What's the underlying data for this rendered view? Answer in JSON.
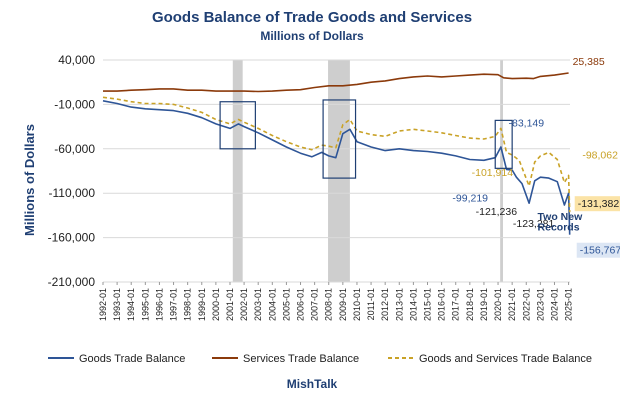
{
  "chart_data": {
    "type": "line",
    "title": "Goods Balance of Trade Goods and Services",
    "subtitle": "Millions of Dollars",
    "ylabel": "Millions of Dollars",
    "xlabel": "",
    "ylim": [
      -210000,
      40000
    ],
    "yticks": [
      40000,
      -10000,
      -60000,
      -110000,
      -160000,
      -210000
    ],
    "ytick_labels": [
      "40,000",
      "-10,000",
      "-60,000",
      "-110,000",
      "-160,000",
      "-210,000"
    ],
    "x_tick_labels": [
      "1992-01",
      "1993-01",
      "1994-01",
      "1995-01",
      "1996-01",
      "1997-01",
      "1998-01",
      "1999-01",
      "2000-01",
      "2001-01",
      "2002-01",
      "2003-01",
      "2004-01",
      "2005-01",
      "2006-01",
      "2007-01",
      "2008-01",
      "2009-01",
      "2010-01",
      "2011-01",
      "2012-01",
      "2013-01",
      "2014-01",
      "2015-01",
      "2016-01",
      "2017-01",
      "2018-01",
      "2019-01",
      "2020-01",
      "2021-01",
      "2022-01",
      "2023-01",
      "2024-01",
      "2025-01"
    ],
    "x_range": [
      1992.0,
      2025.1
    ],
    "grid": true,
    "legend_position": "bottom",
    "shaded_periods": [
      [
        2001.2,
        2001.9
      ],
      [
        2007.95,
        2009.5
      ],
      [
        2020.15,
        2020.35
      ]
    ],
    "highlight_boxes": [
      [
        2000.3,
        2002.8,
        -7000,
        -60000
      ],
      [
        2007.6,
        2009.9,
        -5000,
        -93000
      ],
      [
        2019.8,
        2021.0,
        -28000,
        -82000
      ]
    ],
    "series": [
      {
        "name": "Goods Trade Balance",
        "color": "#2e5597",
        "style": "solid",
        "points": [
          [
            1992.0,
            -6000
          ],
          [
            1993.0,
            -9000
          ],
          [
            1994.0,
            -13000
          ],
          [
            1995.0,
            -15000
          ],
          [
            1996.0,
            -16000
          ],
          [
            1997.0,
            -17000
          ],
          [
            1998.0,
            -20000
          ],
          [
            1999.0,
            -25000
          ],
          [
            2000.0,
            -32000
          ],
          [
            2001.0,
            -37000
          ],
          [
            2001.6,
            -32000
          ],
          [
            2002.0,
            -35000
          ],
          [
            2003.0,
            -42000
          ],
          [
            2004.0,
            -50000
          ],
          [
            2005.0,
            -58000
          ],
          [
            2006.0,
            -65000
          ],
          [
            2006.8,
            -69000
          ],
          [
            2007.5,
            -64000
          ],
          [
            2008.0,
            -68000
          ],
          [
            2008.5,
            -70000
          ],
          [
            2009.0,
            -43000
          ],
          [
            2009.5,
            -38000
          ],
          [
            2010.0,
            -52000
          ],
          [
            2011.0,
            -58000
          ],
          [
            2012.0,
            -62000
          ],
          [
            2013.0,
            -60000
          ],
          [
            2014.0,
            -62000
          ],
          [
            2015.0,
            -63000
          ],
          [
            2016.0,
            -65000
          ],
          [
            2017.0,
            -68000
          ],
          [
            2018.0,
            -72000
          ],
          [
            2019.0,
            -73000
          ],
          [
            2019.8,
            -70000
          ],
          [
            2020.2,
            -58000
          ],
          [
            2020.6,
            -83149
          ],
          [
            2021.0,
            -84000
          ],
          [
            2021.3,
            -92000
          ],
          [
            2021.7,
            -99219
          ],
          [
            2022.2,
            -121236
          ],
          [
            2022.6,
            -96000
          ],
          [
            2023.0,
            -92000
          ],
          [
            2023.6,
            -93000
          ],
          [
            2024.2,
            -97000
          ],
          [
            2024.7,
            -123281
          ],
          [
            2025.0,
            -110000
          ],
          [
            2025.08,
            -156767
          ]
        ]
      },
      {
        "name": "Services Trade Balance",
        "color": "#8b3a0b",
        "style": "solid",
        "points": [
          [
            1992.0,
            5000
          ],
          [
            1993.0,
            5000
          ],
          [
            1994.0,
            6000
          ],
          [
            1995.0,
            6500
          ],
          [
            1996.0,
            7500
          ],
          [
            1997.0,
            7500
          ],
          [
            1998.0,
            6000
          ],
          [
            1999.0,
            6000
          ],
          [
            2000.0,
            5000
          ],
          [
            2001.0,
            5000
          ],
          [
            2002.0,
            5000
          ],
          [
            2003.0,
            4500
          ],
          [
            2004.0,
            5000
          ],
          [
            2005.0,
            6000
          ],
          [
            2006.0,
            6500
          ],
          [
            2007.0,
            9000
          ],
          [
            2008.0,
            11000
          ],
          [
            2009.0,
            11000
          ],
          [
            2010.0,
            12500
          ],
          [
            2011.0,
            15000
          ],
          [
            2012.0,
            16500
          ],
          [
            2013.0,
            19000
          ],
          [
            2014.0,
            21000
          ],
          [
            2015.0,
            22000
          ],
          [
            2016.0,
            21000
          ],
          [
            2017.0,
            22000
          ],
          [
            2018.0,
            23000
          ],
          [
            2019.0,
            24000
          ],
          [
            2020.0,
            23500
          ],
          [
            2020.4,
            20000
          ],
          [
            2021.0,
            19000
          ],
          [
            2022.0,
            19500
          ],
          [
            2022.5,
            19000
          ],
          [
            2023.0,
            21500
          ],
          [
            2024.0,
            23000
          ],
          [
            2025.0,
            25385
          ]
        ]
      },
      {
        "name": "Goods and Services Trade Balance",
        "color": "#c9a227",
        "style": "dashed",
        "points": [
          [
            1992.0,
            -2000
          ],
          [
            1993.0,
            -4000
          ],
          [
            1994.0,
            -7000
          ],
          [
            1995.0,
            -9000
          ],
          [
            1996.0,
            -9000
          ],
          [
            1997.0,
            -10000
          ],
          [
            1998.0,
            -14000
          ],
          [
            1999.0,
            -19000
          ],
          [
            2000.0,
            -27000
          ],
          [
            2001.0,
            -32000
          ],
          [
            2001.6,
            -27000
          ],
          [
            2002.0,
            -30000
          ],
          [
            2003.0,
            -37000
          ],
          [
            2004.0,
            -45000
          ],
          [
            2005.0,
            -52000
          ],
          [
            2006.0,
            -58000
          ],
          [
            2006.8,
            -61000
          ],
          [
            2007.5,
            -56000
          ],
          [
            2008.0,
            -57000
          ],
          [
            2008.5,
            -59000
          ],
          [
            2009.0,
            -33000
          ],
          [
            2009.5,
            -27000
          ],
          [
            2010.0,
            -40000
          ],
          [
            2011.0,
            -44000
          ],
          [
            2012.0,
            -46000
          ],
          [
            2013.0,
            -40000
          ],
          [
            2014.0,
            -38000
          ],
          [
            2015.0,
            -40000
          ],
          [
            2016.0,
            -42000
          ],
          [
            2017.0,
            -45000
          ],
          [
            2018.0,
            -48000
          ],
          [
            2019.0,
            -49000
          ],
          [
            2019.8,
            -46000
          ],
          [
            2020.2,
            -37000
          ],
          [
            2020.6,
            -64000
          ],
          [
            2021.0,
            -67000
          ],
          [
            2021.5,
            -73000
          ],
          [
            2022.2,
            -101914
          ],
          [
            2022.6,
            -75000
          ],
          [
            2023.0,
            -68000
          ],
          [
            2023.6,
            -64000
          ],
          [
            2024.2,
            -72000
          ],
          [
            2024.7,
            -98062
          ],
          [
            2025.0,
            -90000
          ],
          [
            2025.08,
            -131382
          ]
        ]
      }
    ],
    "annotations": [
      {
        "text": "25,385",
        "x": 2025.0,
        "y": 25385,
        "color": "#8b3a0b",
        "dx": 4,
        "dy": -8,
        "anchor": "start",
        "bg": ""
      },
      {
        "text": "-83,149",
        "x": 2020.6,
        "y": -83149,
        "color": "#2e5597",
        "dx": 2,
        "dy": -43,
        "anchor": "start",
        "bg": ""
      },
      {
        "text": "-98,062",
        "x": 2024.7,
        "y": -98062,
        "color": "#c9a227",
        "dx": 18,
        "dy": -24,
        "anchor": "start",
        "bg": ""
      },
      {
        "text": "-101,914",
        "x": 2022.2,
        "y": -101914,
        "color": "#c9a227",
        "dx": -16,
        "dy": -10,
        "anchor": "end",
        "bg": ""
      },
      {
        "text": "-131,382",
        "x": 2025.08,
        "y": -131382,
        "color": "#222",
        "dx": 8,
        "dy": -5,
        "anchor": "start",
        "bg": "#fbe3a6"
      },
      {
        "text": "-99,219",
        "x": 2021.7,
        "y": -99219,
        "color": "#2e5597",
        "dx": -34,
        "dy": 18,
        "anchor": "end",
        "bg": ""
      },
      {
        "text": "-121,236",
        "x": 2022.2,
        "y": -121236,
        "color": "#222",
        "dx": -12,
        "dy": 12,
        "anchor": "end",
        "bg": ""
      },
      {
        "text": "-123,281",
        "x": 2024.7,
        "y": -123281,
        "color": "#222",
        "dx": -10,
        "dy": 22,
        "anchor": "end",
        "bg": ""
      },
      {
        "text": "-156,767",
        "x": 2025.08,
        "y": -156767,
        "color": "#2e5597",
        "dx": 10,
        "dy": 19,
        "anchor": "start",
        "bg": "#dce6f4"
      },
      {
        "text": "Two New",
        "x": 2022.8,
        "y": -140000,
        "color": "#1f3f73",
        "dx": 0,
        "dy": 0,
        "anchor": "start",
        "bg": "",
        "bold": true
      },
      {
        "text": "Records",
        "x": 2022.8,
        "y": -152000,
        "color": "#1f3f73",
        "dx": 0,
        "dy": 0,
        "anchor": "start",
        "bg": "",
        "bold": true
      }
    ],
    "legend": [
      "Goods Trade Balance",
      "Services Trade Balance",
      "Goods and Services Trade Balance"
    ],
    "footer": "MishTalk"
  }
}
